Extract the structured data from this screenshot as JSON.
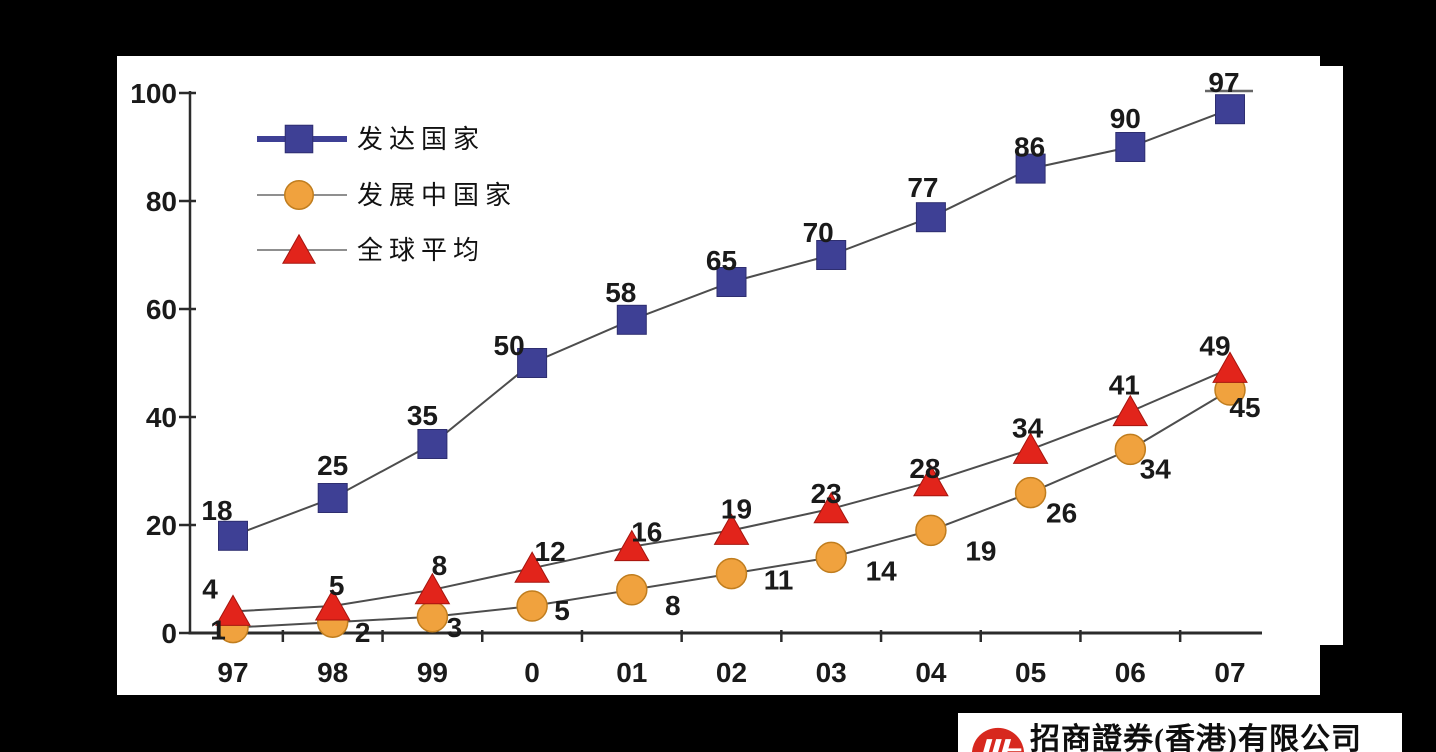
{
  "page": {
    "background_color": "#000000",
    "panel_color": "#ffffff"
  },
  "chart_data": {
    "type": "line",
    "title": "",
    "xlabel": "",
    "ylabel": "",
    "x_categories": [
      "97",
      "98",
      "99",
      "0",
      "01",
      "02",
      "03",
      "04",
      "05",
      "06",
      "07"
    ],
    "series": [
      {
        "key": "developed",
        "name": "发达国家",
        "marker": "square",
        "color": "#3E4095",
        "values": [
          18,
          25,
          35,
          50,
          58,
          65,
          70,
          77,
          86,
          90,
          97
        ]
      },
      {
        "key": "developing",
        "name": "发展中国家",
        "marker": "circle",
        "color": "#F0A23E",
        "values": [
          1,
          2,
          3,
          5,
          8,
          11,
          14,
          19,
          26,
          34,
          45
        ]
      },
      {
        "key": "global-average",
        "name": "全球平均",
        "marker": "triangle",
        "color": "#E2241B",
        "values": [
          4,
          5,
          8,
          12,
          16,
          19,
          23,
          28,
          34,
          41,
          49
        ]
      }
    ],
    "y_ticks": [
      0,
      20,
      40,
      60,
      80,
      100
    ],
    "ylim": [
      0,
      100
    ],
    "grid": false,
    "legend_position": "upper-left-inside",
    "line_color": "#4d4d4d",
    "axis_color": "#2b2b2b",
    "text_color": "#1a1a1a",
    "legend_line_color": "#8f8f8f",
    "label_offsets": [
      [
        [
          -16,
          -26
        ],
        [
          0,
          -33
        ],
        [
          -10,
          -29
        ],
        [
          -23,
          -18
        ],
        [
          -11,
          -28
        ],
        [
          -10,
          -22
        ],
        [
          -13,
          -23
        ],
        [
          -8,
          -30
        ],
        [
          -1,
          -22
        ],
        [
          -5,
          -29
        ],
        [
          -6,
          -27
        ]
      ],
      [
        [
          -15,
          2
        ],
        [
          30,
          10
        ],
        [
          22,
          10
        ],
        [
          30,
          4
        ],
        [
          41,
          15
        ],
        [
          47,
          6
        ],
        [
          50,
          13
        ],
        [
          50,
          20
        ],
        [
          31,
          20
        ],
        [
          25,
          19
        ],
        [
          15,
          17
        ]
      ],
      [
        [
          -23,
          -23
        ],
        [
          4,
          -21
        ],
        [
          7,
          -25
        ],
        [
          18,
          -17
        ],
        [
          15,
          -15
        ],
        [
          5,
          -22
        ],
        [
          -5,
          -16
        ],
        [
          -6,
          -14
        ],
        [
          -3,
          -22
        ],
        [
          -6,
          -27
        ],
        [
          -15,
          -23
        ]
      ]
    ]
  },
  "logo": {
    "text": "招商證券(香港)有限公司",
    "icon": "cms-circle-logo",
    "icon_color": "#D7281E"
  }
}
